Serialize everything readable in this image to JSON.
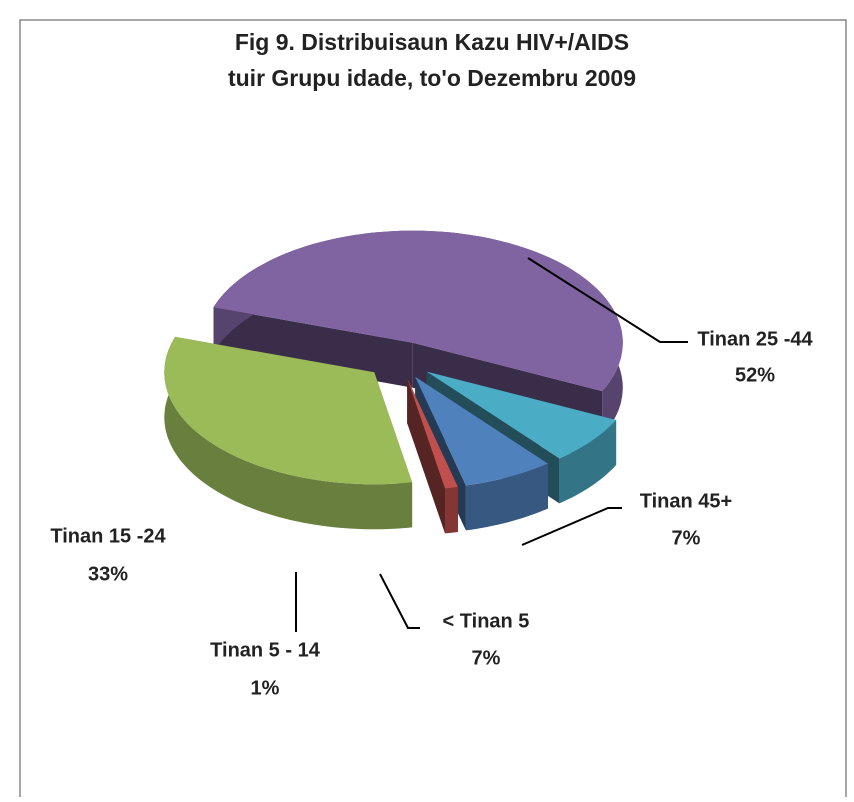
{
  "chart_data": {
    "type": "pie",
    "title": [
      "Fig 9. Distribuisaun Kazu  HIV+/AIDS",
      "tuir Grupu idade, to'o Dezembru 2009"
    ],
    "categories": [
      "Tinan 25 -44",
      "Tinan 45+",
      "<  Tinan 5",
      "Tinan 5 - 14",
      "Tinan 15 -24"
    ],
    "values": [
      52,
      7,
      7,
      1,
      33
    ],
    "value_labels": [
      "52%",
      "7%",
      "7%",
      "1%",
      "33%"
    ],
    "colors": [
      "#8064a2",
      "#4bacc6",
      "#4f81bd",
      "#c0504d",
      "#9bbb59"
    ]
  }
}
